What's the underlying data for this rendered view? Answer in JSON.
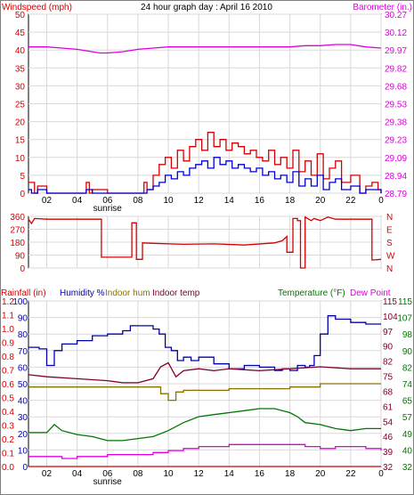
{
  "title": "24 hour graph day : April 16 2010",
  "colors": {
    "wind_speed": "#d40000",
    "wind_avg": "#0000cc",
    "barometer": "#dd00dd",
    "direction": "#d40000",
    "humidity": "#0000aa",
    "indoor_hum": "#8a7000",
    "indoor_temp": "#800030",
    "temperature": "#007700",
    "dew_point": "#dd00dd",
    "rainfall": "#d40000"
  },
  "x_ticks": [
    "02",
    "04",
    "06",
    "08",
    "10",
    "12",
    "14",
    "16",
    "18",
    "20",
    "22",
    "0"
  ],
  "sunrise_label": "sunrise",
  "chart_data": [
    {
      "type": "line",
      "panel": "wind-barometer",
      "title": "24 hour graph day : April 16 2010",
      "left_axis": {
        "label": "Windspeed (mph)",
        "ticks": [
          "0",
          "5",
          "10",
          "15",
          "20",
          "25",
          "30",
          "35",
          "40",
          "45",
          "50"
        ],
        "range": [
          0,
          50
        ]
      },
      "right_axis": {
        "label": "Barometer (in.)",
        "ticks": [
          "28.79",
          "28.94",
          "29.09",
          "29.23",
          "29.38",
          "29.53",
          "29.68",
          "29.82",
          "29.97",
          "30.12",
          "30.27"
        ],
        "range": [
          28.79,
          30.27
        ]
      },
      "x_range": [
        0.8,
        24
      ],
      "series": [
        {
          "key": "barometer",
          "axis": "right",
          "x": [
            0.8,
            2,
            3,
            4,
            5,
            5.5,
            6,
            7,
            8,
            9,
            10,
            11,
            12,
            13,
            14,
            15,
            16,
            17,
            18,
            19,
            20,
            21,
            22,
            23,
            24
          ],
          "y": [
            30.0,
            30.0,
            29.99,
            29.98,
            29.96,
            29.95,
            29.95,
            29.96,
            29.98,
            29.99,
            30.0,
            30.0,
            30.0,
            30.0,
            30.0,
            30.0,
            30.0,
            30.0,
            30.0,
            30.01,
            30.01,
            30.02,
            30.02,
            30.0,
            29.99
          ]
        },
        {
          "key": "wind_speed",
          "axis": "left",
          "x": [
            0.8,
            1,
            1.2,
            1.4,
            2,
            3,
            4,
            4.6,
            4.8,
            5,
            6,
            7,
            8,
            8.4,
            8.6,
            9,
            9.4,
            9.8,
            10.2,
            10.6,
            11,
            11.4,
            11.8,
            12.2,
            12.6,
            13,
            13.4,
            13.8,
            14.2,
            14.6,
            15,
            15.4,
            15.8,
            16.2,
            16.6,
            17,
            17.4,
            17.8,
            18.2,
            18.6,
            19,
            19.4,
            19.8,
            20.2,
            20.6,
            21,
            21.4,
            22,
            22.6,
            23,
            23.4,
            23.8,
            24
          ],
          "y": [
            3,
            3,
            0,
            2,
            0,
            0,
            0,
            3,
            0,
            1,
            0,
            0,
            0,
            3,
            1,
            5,
            8,
            10,
            7,
            12,
            9,
            13,
            15,
            12,
            17,
            13,
            15,
            12,
            14,
            13,
            11,
            12,
            10,
            9,
            12,
            8,
            10,
            7,
            12,
            6,
            9,
            5,
            11,
            4,
            7,
            9,
            3,
            5,
            0,
            2,
            3,
            1,
            0
          ]
        },
        {
          "key": "wind_avg",
          "axis": "left",
          "x": [
            0.8,
            1,
            1.4,
            2,
            4,
            4.6,
            5,
            6,
            8,
            8.6,
            9,
            9.4,
            9.8,
            10.2,
            10.6,
            11,
            11.4,
            11.8,
            12.2,
            12.6,
            13,
            13.4,
            13.8,
            14.2,
            14.6,
            15,
            15.4,
            15.8,
            16.2,
            16.6,
            17,
            17.4,
            17.8,
            18.2,
            18.6,
            19,
            19.4,
            19.8,
            20.2,
            20.6,
            21,
            21.4,
            22,
            22.6,
            23,
            23.6,
            24
          ],
          "y": [
            1,
            0,
            1,
            0,
            0,
            1,
            0,
            0,
            0,
            1,
            2,
            3,
            5,
            4,
            6,
            5,
            7,
            8,
            9,
            7,
            10,
            8,
            9,
            7,
            8,
            7,
            6,
            7,
            5,
            6,
            4,
            5,
            3,
            6,
            2,
            4,
            2,
            5,
            1,
            3,
            4,
            1,
            2,
            0,
            1,
            1,
            0
          ]
        }
      ]
    },
    {
      "type": "line",
      "panel": "wind-direction",
      "left_axis": {
        "ticks": [
          "0",
          "90",
          "180",
          "270",
          "360"
        ],
        "range": [
          0,
          360
        ]
      },
      "right_axis": {
        "ticks": [
          "N",
          "W",
          "S",
          "E",
          "N"
        ]
      },
      "x_range": [
        0.8,
        24
      ],
      "series": [
        {
          "key": "direction",
          "x": [
            0.8,
            1,
            1.2,
            2,
            5.6,
            5.6,
            7.6,
            7.6,
            7.9,
            7.9,
            8.3,
            8.3,
            9,
            11,
            13,
            15,
            17,
            17.5,
            17.8,
            17.8,
            18.2,
            18.2,
            18.5,
            18.5,
            18.7,
            18.7,
            19,
            19,
            19.4,
            19.6,
            20,
            20.5,
            21,
            22,
            23,
            23.4,
            23.4,
            24
          ],
          "y": [
            340,
            310,
            345,
            340,
            340,
            75,
            75,
            315,
            315,
            60,
            60,
            175,
            172,
            165,
            168,
            160,
            175,
            190,
            220,
            110,
            110,
            345,
            345,
            330,
            330,
            0,
            0,
            355,
            330,
            345,
            330,
            355,
            340,
            340,
            340,
            340,
            55,
            60
          ]
        }
      ]
    },
    {
      "type": "line",
      "panel": "humidity-temperature",
      "legend": [
        "Rainfall (in)",
        "Humidity %",
        "Indoor hum",
        "Indoor temp",
        "Temperature (°F)",
        "Dew Point"
      ],
      "left_axes": [
        {
          "label": "Rainfall (in)",
          "ticks": [
            "0.0",
            "0.1",
            "0.2",
            "0.3",
            "0.4",
            "0.5",
            "0.6",
            "0.7",
            "0.8",
            "0.9",
            "1.0",
            "1.1",
            "1.2"
          ],
          "range": [
            0,
            1.2
          ]
        },
        {
          "label": "Humidity %",
          "ticks": [
            "0",
            "10",
            "20",
            "30",
            "40",
            "50",
            "60",
            "70",
            "80",
            "90",
            "100"
          ],
          "range": [
            0,
            100
          ]
        }
      ],
      "right_axes": [
        {
          "label": "Indoor temp",
          "ticks": [
            "32",
            "39",
            "46",
            "54",
            "61",
            "68",
            "75",
            "82",
            "90",
            "97",
            "104",
            "115"
          ],
          "range": [
            32,
            115
          ]
        },
        {
          "label": "Temperature (°F)",
          "ticks": [
            "32",
            "40",
            "49",
            "57",
            "65",
            "74",
            "82",
            "90",
            "98",
            "107",
            "115"
          ],
          "range": [
            32,
            115
          ]
        }
      ],
      "x_range": [
        0.8,
        24
      ],
      "series": [
        {
          "key": "humidity",
          "unit": "%",
          "x": [
            0.8,
            1.5,
            2,
            2.5,
            3,
            4,
            5,
            6,
            7,
            7.5,
            8,
            8.5,
            9,
            9.4,
            9.8,
            10.2,
            10.6,
            11,
            11.5,
            12,
            13,
            14,
            15,
            16,
            17,
            17.5,
            18,
            18.5,
            19,
            19.3,
            19.6,
            20,
            20.5,
            21,
            22,
            23,
            24
          ],
          "y": [
            72,
            71,
            61,
            70,
            74,
            76,
            79,
            80,
            82,
            85,
            85,
            85,
            83,
            80,
            72,
            70,
            64,
            66,
            64,
            66,
            62,
            59,
            61,
            60,
            58,
            59,
            58,
            61,
            60,
            61,
            67,
            80,
            91,
            89,
            87,
            86,
            86
          ]
        },
        {
          "key": "indoor_temp",
          "unit": "°F",
          "x": [
            0.8,
            2,
            4,
            6,
            7,
            8,
            9,
            9.5,
            10,
            10.5,
            11,
            12,
            13,
            14,
            16,
            18,
            20,
            22,
            24
          ],
          "y": [
            78,
            77,
            76,
            75,
            74,
            74,
            76,
            82,
            84,
            77,
            80,
            81,
            80,
            81,
            80,
            81,
            82,
            81,
            81
          ]
        },
        {
          "key": "indoor_hum",
          "unit": "%",
          "x": [
            0.8,
            2,
            4,
            6,
            8,
            9,
            9.5,
            10,
            10.5,
            11,
            12,
            14,
            16,
            18,
            19,
            20,
            21,
            22,
            24
          ],
          "y": [
            48,
            48,
            48,
            48,
            48,
            48,
            44,
            40,
            45,
            46,
            46,
            47,
            47,
            48,
            48,
            50,
            50,
            50,
            50
          ]
        },
        {
          "key": "temperature",
          "unit": "°F",
          "x": [
            0.8,
            2,
            2.5,
            3,
            4,
            5,
            6,
            7,
            8,
            9,
            10,
            11,
            12,
            13,
            14,
            15,
            16,
            17,
            18,
            18.5,
            19,
            20,
            21,
            22,
            23,
            24
          ],
          "y": [
            49,
            49,
            53,
            50,
            48,
            47,
            45,
            45,
            46,
            47,
            50,
            54,
            57,
            58,
            59,
            60,
            61,
            61,
            59,
            57,
            54,
            53,
            51,
            50,
            51,
            51
          ]
        },
        {
          "key": "dew_point",
          "unit": "°F",
          "x": [
            0.8,
            2,
            3,
            4,
            5,
            6,
            7,
            8,
            9,
            10,
            11,
            12,
            13,
            14,
            15,
            16,
            17,
            18,
            19,
            20,
            21,
            22,
            23,
            24
          ],
          "y": [
            37,
            37,
            36,
            37,
            37,
            38,
            38,
            38,
            39,
            40,
            41,
            42,
            42,
            43,
            43,
            43,
            43,
            43,
            42,
            41,
            42,
            42,
            41,
            40
          ]
        },
        {
          "key": "rainfall",
          "unit": "in",
          "x": [
            0.8,
            24
          ],
          "y": [
            0,
            0
          ]
        }
      ]
    }
  ]
}
